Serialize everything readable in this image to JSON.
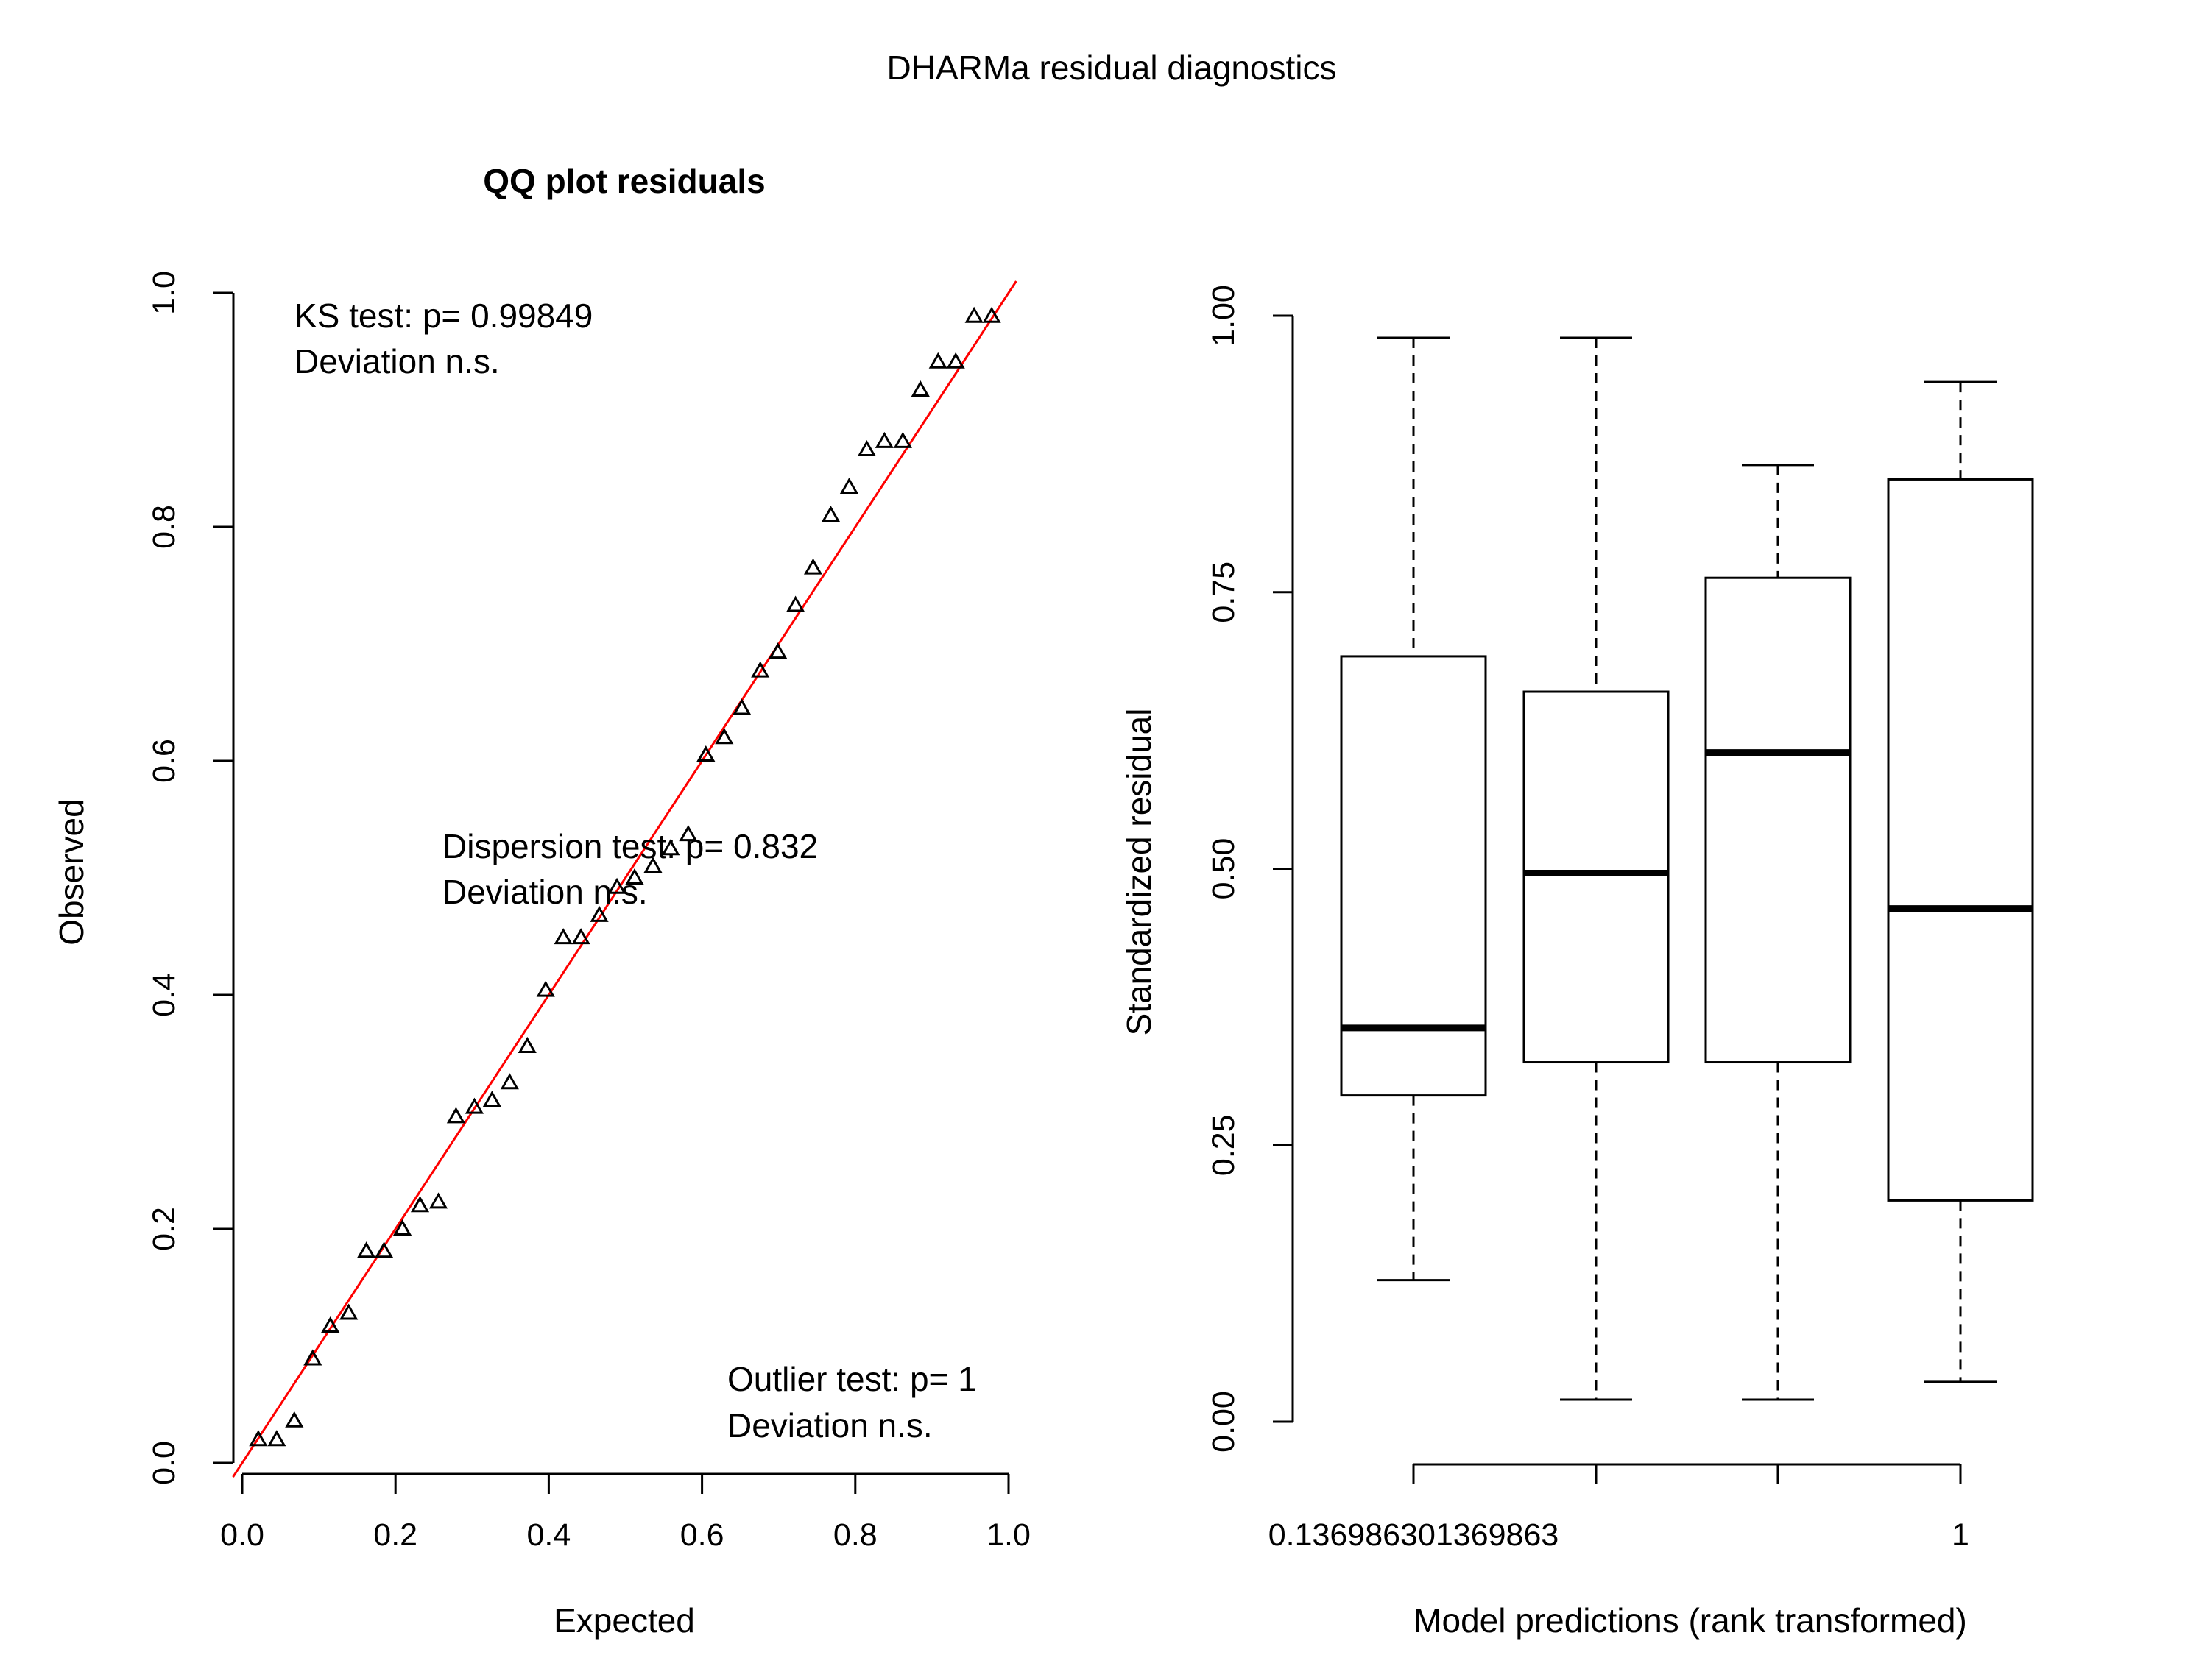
{
  "page_title": "DHARMa residual diagnostics",
  "chart_data": [
    {
      "type": "scatter",
      "title": "QQ plot residuals",
      "xlabel": "Expected",
      "ylabel": "Observed",
      "xlim": [
        0,
        1
      ],
      "ylim": [
        0,
        1
      ],
      "x_ticks": [
        "0.0",
        "0.2",
        "0.4",
        "0.6",
        "0.8",
        "1.0"
      ],
      "y_ticks": [
        "0.0",
        "0.2",
        "0.4",
        "0.6",
        "0.8",
        "1.0"
      ],
      "reference_line": {
        "intercept": 0,
        "slope": 1,
        "color": "#ff0000"
      },
      "marker": "open-triangle",
      "points": [
        [
          0.021,
          0.02
        ],
        [
          0.045,
          0.02
        ],
        [
          0.068,
          0.036
        ],
        [
          0.092,
          0.089
        ],
        [
          0.115,
          0.117
        ],
        [
          0.139,
          0.128
        ],
        [
          0.162,
          0.181
        ],
        [
          0.185,
          0.181
        ],
        [
          0.209,
          0.2
        ],
        [
          0.232,
          0.22
        ],
        [
          0.256,
          0.223
        ],
        [
          0.279,
          0.296
        ],
        [
          0.303,
          0.304
        ],
        [
          0.326,
          0.31
        ],
        [
          0.349,
          0.325
        ],
        [
          0.372,
          0.356
        ],
        [
          0.396,
          0.404
        ],
        [
          0.419,
          0.449
        ],
        [
          0.442,
          0.449
        ],
        [
          0.466,
          0.468
        ],
        [
          0.489,
          0.492
        ],
        [
          0.512,
          0.5
        ],
        [
          0.536,
          0.51
        ],
        [
          0.559,
          0.525
        ],
        [
          0.582,
          0.537
        ],
        [
          0.605,
          0.605
        ],
        [
          0.629,
          0.62
        ],
        [
          0.652,
          0.645
        ],
        [
          0.676,
          0.677
        ],
        [
          0.699,
          0.693
        ],
        [
          0.722,
          0.733
        ],
        [
          0.745,
          0.765
        ],
        [
          0.768,
          0.81
        ],
        [
          0.792,
          0.834
        ],
        [
          0.815,
          0.866
        ],
        [
          0.838,
          0.873
        ],
        [
          0.862,
          0.873
        ],
        [
          0.885,
          0.917
        ],
        [
          0.908,
          0.941
        ],
        [
          0.931,
          0.941
        ],
        [
          0.955,
          0.98
        ],
        [
          0.978,
          0.98
        ]
      ],
      "annotations": [
        {
          "line1": "KS test: p= 0.99849",
          "line2": "Deviation  n.s."
        },
        {
          "line1": "Dispersion test: p= 0.832",
          "line2": "Deviation  n.s."
        },
        {
          "line1": "Outlier test: p= 1",
          "line2": "Deviation  n.s."
        }
      ]
    },
    {
      "type": "box",
      "xlabel": "Model predictions (rank transformed)",
      "ylabel": "Standardized residual",
      "ylim": [
        0,
        1
      ],
      "y_ticks": [
        "0.00",
        "0.25",
        "0.50",
        "0.75",
        "1.00"
      ],
      "x_tick_labels": [
        "0.136986301369863",
        "",
        "",
        "1"
      ],
      "boxes": [
        {
          "min": 0.128,
          "q1": 0.295,
          "median": 0.356,
          "q3": 0.692,
          "max": 0.98
        },
        {
          "min": 0.02,
          "q1": 0.325,
          "median": 0.496,
          "q3": 0.66,
          "max": 0.98
        },
        {
          "min": 0.02,
          "q1": 0.325,
          "median": 0.605,
          "q3": 0.763,
          "max": 0.865
        },
        {
          "min": 0.036,
          "q1": 0.2,
          "median": 0.464,
          "q3": 0.852,
          "max": 0.94
        }
      ]
    }
  ]
}
